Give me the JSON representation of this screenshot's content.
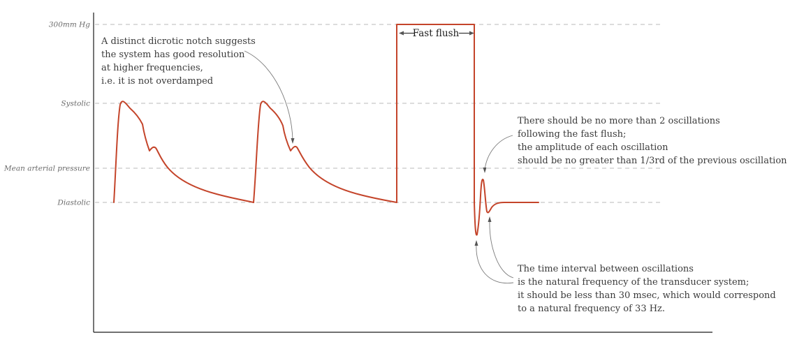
{
  "y_levels": [
    {
      "label": "300mm Hg"
    },
    {
      "label": "Systolic"
    },
    {
      "label": "Mean arterial pressure"
    },
    {
      "label": "Diastolic"
    }
  ],
  "fast_flush_label": "Fast flush",
  "annotations": {
    "dicrotic_notch": [
      "A distinct dicrotic notch suggests",
      "the system has good resolution",
      "at higher frequencies,",
      "i.e. it is not overdamped"
    ],
    "oscillations": [
      "There should be no more than 2 oscillations",
      "following the fast flush;",
      "the amplitude of each oscillation",
      "should be no greater than 1/3rd of the previous oscillation"
    ],
    "natural_frequency": [
      "The time interval between oscillations",
      "is the natural frequency of the transducer system;",
      "it should be less  than 30 msec, which would correspond",
      "to a natural frequency of 33 Hz."
    ]
  },
  "colors": {
    "trace": "#c4442a",
    "guide_lines": "#b8b8b8",
    "axis": "#1a1a1a",
    "text": "#3a3a3a"
  }
}
